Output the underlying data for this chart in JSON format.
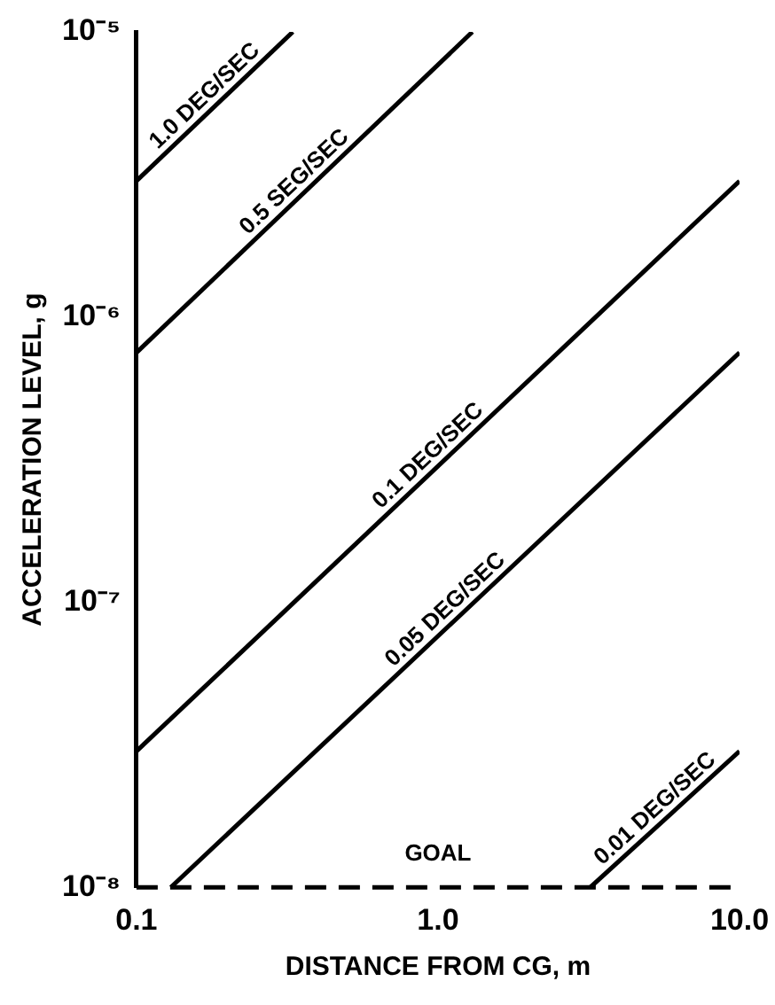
{
  "chart_data": {
    "type": "line",
    "xlabel": "DISTANCE FROM CG, m",
    "ylabel": "ACCELERATION LEVEL, g",
    "log": "xy",
    "xlim": [
      0.1,
      10
    ],
    "ylim": [
      1e-08,
      1e-05
    ],
    "xticks": [
      {
        "value": 0.1,
        "label": "0.1"
      },
      {
        "value": 1,
        "label": "1.0"
      },
      {
        "value": 10,
        "label": "10.0"
      }
    ],
    "yticks": [
      {
        "value": 1e-08,
        "label": "10⁻⁸"
      },
      {
        "value": 1e-07,
        "label": "10⁻⁷"
      },
      {
        "value": 1e-06,
        "label": "10⁻⁶"
      },
      {
        "value": 1e-05,
        "label": "10⁻⁵"
      }
    ],
    "grid": false,
    "legend": false,
    "marker": "none",
    "line_style": "solid",
    "series": [
      {
        "name": "1.0 DEG/SEC",
        "color": "#000000",
        "x": [
          0.1,
          0.33
        ],
        "values": [
          3e-06,
          1e-05
        ]
      },
      {
        "name": "0.5 SEG/SEC",
        "color": "#000000",
        "x": [
          0.1,
          1.3
        ],
        "values": [
          7.5e-07,
          1e-05
        ]
      },
      {
        "name": "0.1 DEG/SEC",
        "color": "#000000",
        "x": [
          0.1,
          10
        ],
        "values": [
          3e-08,
          3e-06
        ]
      },
      {
        "name": "0.05 DEG/SEC",
        "color": "#000000",
        "x": [
          0.13,
          10
        ],
        "values": [
          1e-08,
          7.5e-07
        ]
      },
      {
        "name": "0.01 DEG/SEC",
        "color": "#000000",
        "x": [
          3.2,
          10
        ],
        "values": [
          1e-08,
          3e-08
        ]
      }
    ],
    "ref_lines": [
      {
        "axis": "y",
        "value": 1e-08,
        "label": "GOAL",
        "color": "#000000",
        "line_style": "dashed"
      }
    ]
  }
}
